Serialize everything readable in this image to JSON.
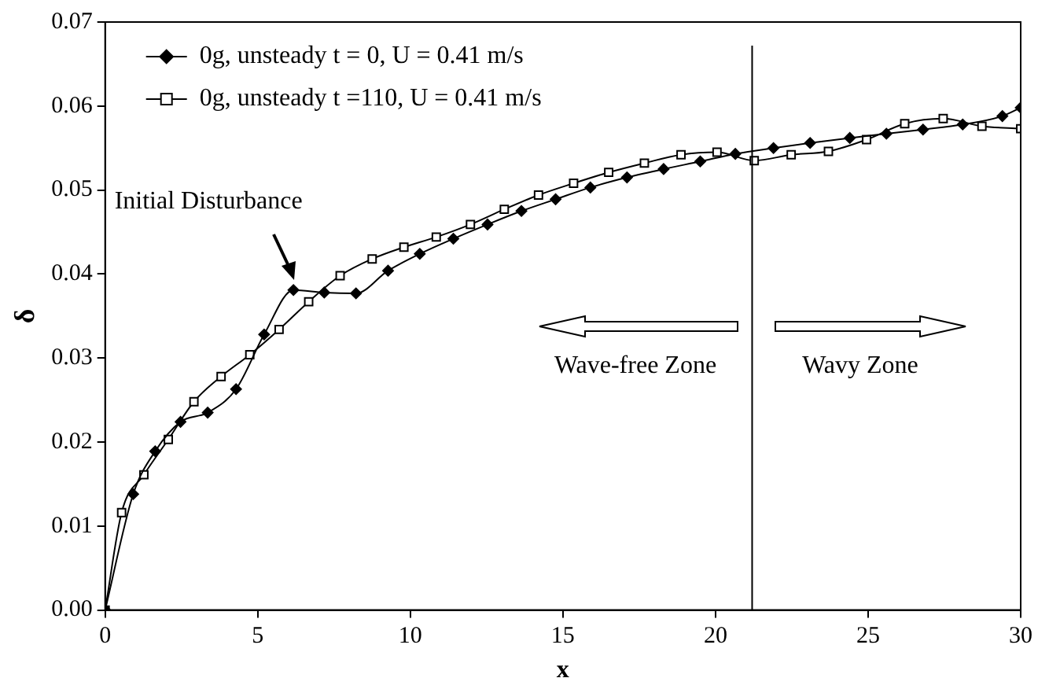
{
  "chart_data": {
    "type": "line",
    "xlabel": "x",
    "ylabel": "δ",
    "xlim": [
      0,
      30
    ],
    "ylim": [
      0,
      0.07
    ],
    "xticks": [
      0,
      5,
      10,
      15,
      20,
      25,
      30
    ],
    "yticks": [
      {
        "value": 0,
        "label": "0.00"
      },
      {
        "value": 0.01,
        "label": "0.01"
      },
      {
        "value": 0.02,
        "label": "0.02"
      },
      {
        "value": 0.03,
        "label": "0.03"
      },
      {
        "value": 0.04,
        "label": "0.04"
      },
      {
        "value": 0.05,
        "label": "0.05"
      },
      {
        "value": 0.06,
        "label": "0.06"
      },
      {
        "value": 0.07,
        "label": "0.07"
      }
    ],
    "grid": false,
    "legend": "top left",
    "line_style": "solid",
    "series": [
      {
        "name": "0g, unsteady t = 0, U = 0.41 m/s",
        "color": "#000000",
        "marker": "diamond",
        "x": [
          0,
          0.92,
          1.64,
          2.47,
          3.36,
          4.29,
          5.21,
          6.17,
          7.18,
          8.22,
          9.27,
          10.31,
          11.41,
          12.53,
          13.64,
          14.76,
          15.9,
          17.1,
          18.3,
          19.5,
          20.65,
          21.9,
          23.1,
          24.4,
          25.6,
          26.8,
          28.1,
          29.4,
          30
        ],
        "values": [
          0,
          0.0138,
          0.0189,
          0.0224,
          0.0235,
          0.0263,
          0.0328,
          0.0381,
          0.0378,
          0.0377,
          0.0404,
          0.0424,
          0.0442,
          0.0459,
          0.0475,
          0.0489,
          0.0503,
          0.0515,
          0.0525,
          0.0534,
          0.0543,
          0.055,
          0.0556,
          0.0562,
          0.0567,
          0.0572,
          0.0578,
          0.0588,
          0.0598
        ]
      },
      {
        "name": "0g, unsteady t =110, U = 0.41 m/s",
        "color": "#000000",
        "marker": "square",
        "x": [
          0,
          0.54,
          1.27,
          2.07,
          2.91,
          3.8,
          4.74,
          5.7,
          6.67,
          7.7,
          8.75,
          9.79,
          10.85,
          11.97,
          13.08,
          14.2,
          15.35,
          16.5,
          17.67,
          18.87,
          20.05,
          21.27,
          22.48,
          23.7,
          24.95,
          26.2,
          27.46,
          28.73,
          30
        ],
        "values": [
          0,
          0.0116,
          0.0161,
          0.0203,
          0.0248,
          0.0278,
          0.0304,
          0.0334,
          0.0367,
          0.0398,
          0.0418,
          0.0432,
          0.0444,
          0.0459,
          0.0477,
          0.0494,
          0.0508,
          0.0521,
          0.0532,
          0.0542,
          0.0545,
          0.0535,
          0.0542,
          0.0546,
          0.056,
          0.0579,
          0.0585,
          0.0576,
          0.0573
        ]
      }
    ],
    "ref_lines": [
      {
        "axis": "x",
        "value": 21.2,
        "color": "#000000"
      }
    ],
    "annotations": [
      {
        "text": "Initial Disturbance",
        "x": 6.17,
        "y": 0.0381
      },
      "Wave-free Zone",
      "Wavy Zone"
    ]
  }
}
